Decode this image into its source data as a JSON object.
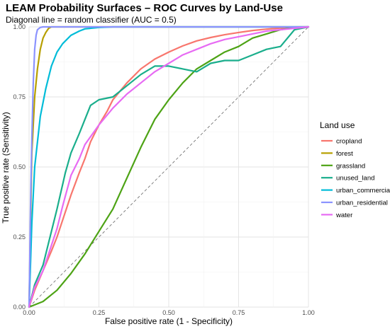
{
  "chart_data": {
    "type": "line",
    "title": "LEAM Probability Surfaces – ROC Curves by Land-Use",
    "subtitle": "Diagonal line = random classifier (AUC = 0.5)",
    "xlabel": "False positive rate (1 - Specificity)",
    "ylabel": "True positive rate (Sensitivity)",
    "xlim": [
      0,
      1
    ],
    "ylim": [
      0,
      1
    ],
    "x_ticks": [
      "0.00",
      "0.25",
      "0.50",
      "0.75",
      "1.00"
    ],
    "y_ticks": [
      "0.00",
      "0.25",
      "0.50",
      "0.75",
      "1.00"
    ],
    "grid": true,
    "legend_title": "Land use",
    "legend_position": "right",
    "reference_line": {
      "style": "dashed",
      "x": [
        0,
        1
      ],
      "y": [
        0,
        1
      ],
      "color": "#666666"
    },
    "series": [
      {
        "name": "cropland",
        "color": "#F8766D",
        "x": [
          0,
          0.02,
          0.05,
          0.08,
          0.1,
          0.12,
          0.15,
          0.18,
          0.2,
          0.22,
          0.25,
          0.28,
          0.3,
          0.35,
          0.4,
          0.45,
          0.5,
          0.55,
          0.6,
          0.65,
          0.7,
          0.75,
          0.8,
          0.85,
          0.9,
          0.95,
          1.0
        ],
        "y": [
          0,
          0.06,
          0.13,
          0.2,
          0.25,
          0.31,
          0.4,
          0.48,
          0.53,
          0.59,
          0.65,
          0.7,
          0.74,
          0.8,
          0.85,
          0.885,
          0.91,
          0.932,
          0.95,
          0.962,
          0.972,
          0.98,
          0.987,
          0.992,
          0.996,
          0.999,
          1.0
        ]
      },
      {
        "name": "forest",
        "color": "#B79F00",
        "x": [
          0,
          0.005,
          0.01,
          0.02,
          0.03,
          0.04,
          0.05,
          0.06,
          0.07,
          0.08,
          1.0
        ],
        "y": [
          0,
          0.3,
          0.55,
          0.75,
          0.85,
          0.92,
          0.96,
          0.98,
          0.995,
          1.0,
          1.0
        ]
      },
      {
        "name": "grassland",
        "color": "#4DA315",
        "x": [
          0,
          0.05,
          0.1,
          0.15,
          0.2,
          0.25,
          0.3,
          0.35,
          0.4,
          0.45,
          0.5,
          0.55,
          0.6,
          0.65,
          0.7,
          0.75,
          0.8,
          0.85,
          0.9,
          0.95,
          1.0
        ],
        "y": [
          0,
          0.02,
          0.06,
          0.12,
          0.19,
          0.27,
          0.35,
          0.46,
          0.57,
          0.67,
          0.74,
          0.8,
          0.85,
          0.88,
          0.91,
          0.93,
          0.96,
          0.975,
          0.99,
          0.998,
          1.0
        ]
      },
      {
        "name": "unused_land",
        "color": "#1AAE8C",
        "x": [
          0,
          0.02,
          0.05,
          0.08,
          0.1,
          0.13,
          0.15,
          0.18,
          0.2,
          0.22,
          0.25,
          0.3,
          0.35,
          0.4,
          0.45,
          0.5,
          0.55,
          0.6,
          0.65,
          0.7,
          0.75,
          0.8,
          0.85,
          0.9,
          0.95,
          1.0
        ],
        "y": [
          0,
          0.08,
          0.15,
          0.27,
          0.35,
          0.48,
          0.55,
          0.62,
          0.67,
          0.72,
          0.74,
          0.75,
          0.79,
          0.83,
          0.86,
          0.86,
          0.85,
          0.84,
          0.87,
          0.88,
          0.88,
          0.9,
          0.92,
          0.93,
          0.99,
          1.0
        ]
      },
      {
        "name": "urban_commercial",
        "color": "#00BCD8",
        "x": [
          0,
          0.01,
          0.02,
          0.04,
          0.06,
          0.08,
          0.1,
          0.12,
          0.15,
          0.18,
          0.2,
          0.25,
          0.3,
          0.4,
          1.0
        ],
        "y": [
          0,
          0.3,
          0.5,
          0.68,
          0.78,
          0.86,
          0.91,
          0.94,
          0.97,
          0.985,
          0.993,
          0.998,
          1.0,
          1.0,
          1.0
        ]
      },
      {
        "name": "urban_residential",
        "color": "#8B93FF",
        "x": [
          0,
          0.005,
          0.01,
          0.015,
          0.02,
          0.025,
          0.03,
          0.04,
          0.05,
          1.0
        ],
        "y": [
          0,
          0.35,
          0.6,
          0.8,
          0.92,
          0.97,
          0.99,
          0.998,
          1.0,
          1.0
        ]
      },
      {
        "name": "water",
        "color": "#E76BF3",
        "x": [
          0,
          0.02,
          0.05,
          0.08,
          0.1,
          0.12,
          0.15,
          0.18,
          0.2,
          0.25,
          0.3,
          0.35,
          0.4,
          0.45,
          0.5,
          0.55,
          0.6,
          0.65,
          0.7,
          0.75,
          0.8,
          0.85,
          0.9,
          0.95,
          1.0
        ],
        "y": [
          0,
          0.07,
          0.13,
          0.22,
          0.28,
          0.36,
          0.47,
          0.53,
          0.58,
          0.65,
          0.71,
          0.76,
          0.8,
          0.84,
          0.87,
          0.9,
          0.92,
          0.94,
          0.955,
          0.965,
          0.975,
          0.985,
          0.99,
          0.995,
          1.0
        ]
      }
    ]
  }
}
